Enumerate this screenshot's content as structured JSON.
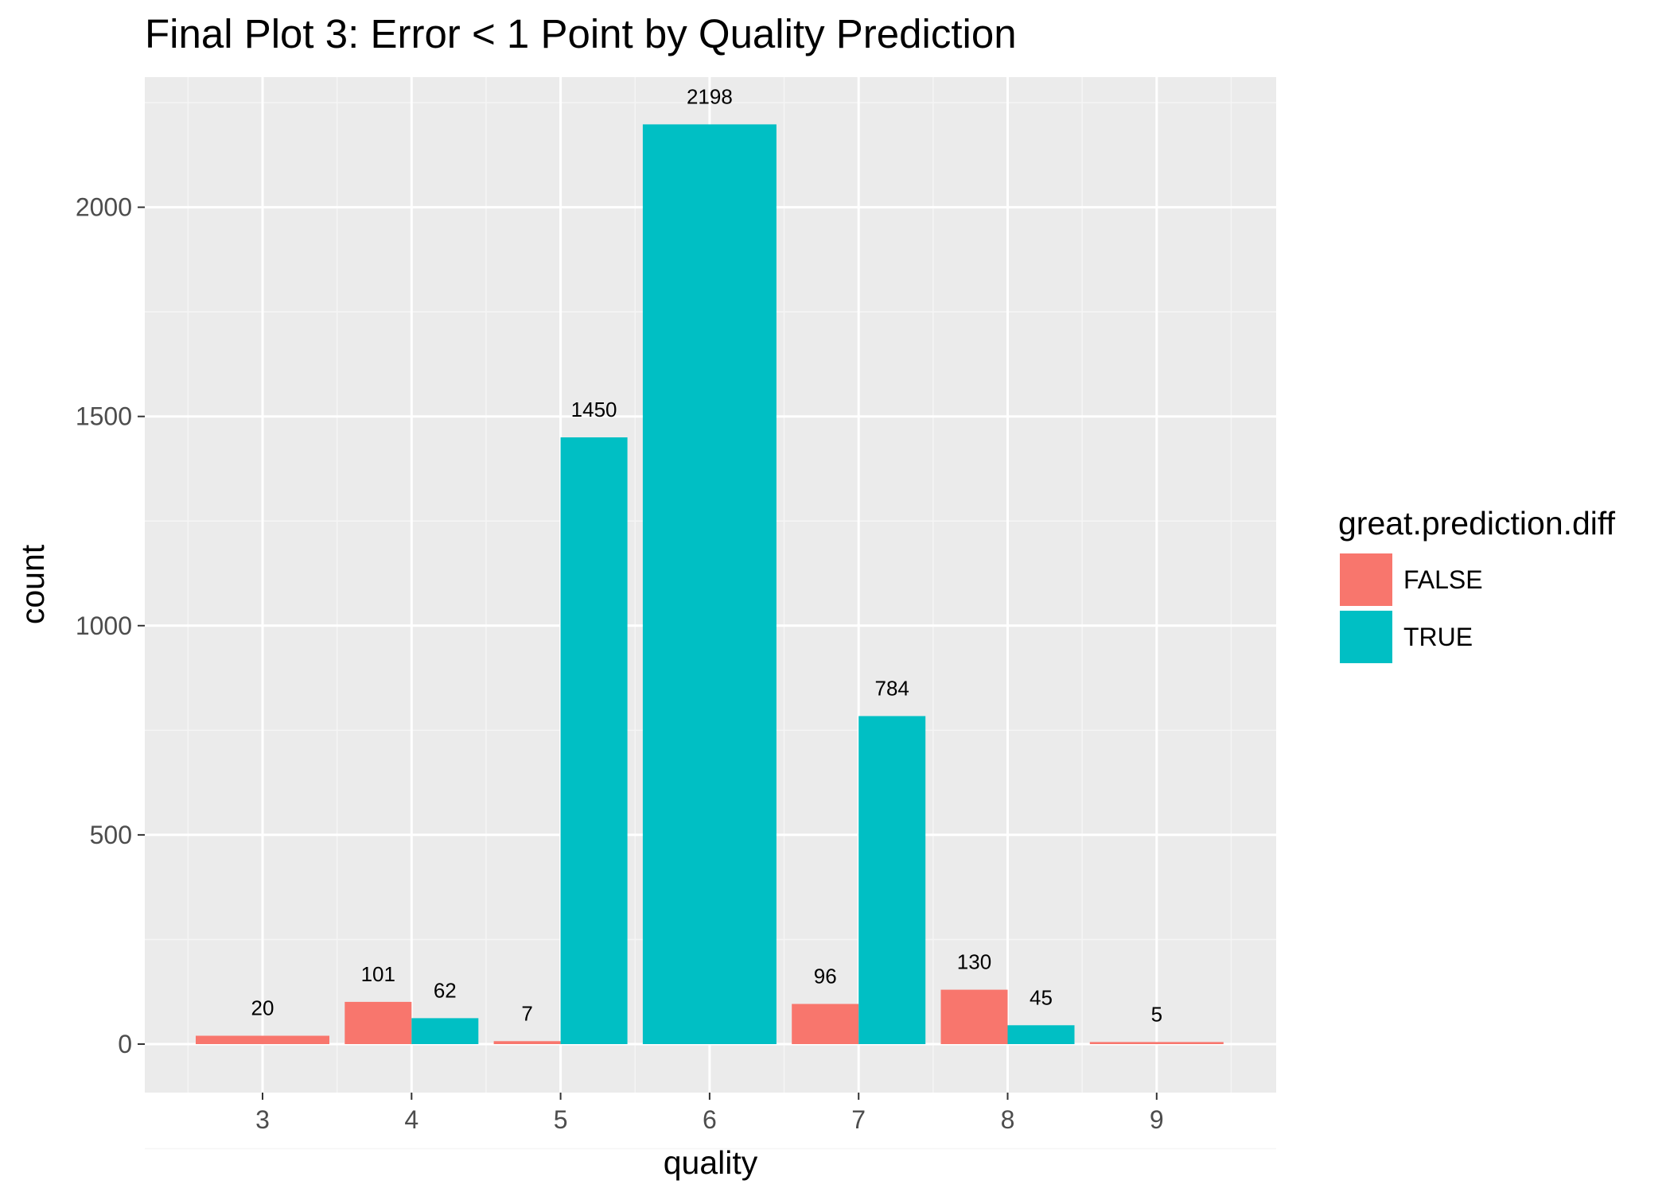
{
  "chart_data": {
    "type": "bar",
    "title": "Final Plot 3: Error < 1 Point by Quality Prediction",
    "xlabel": "quality",
    "ylabel": "count",
    "categories": [
      "3",
      "4",
      "5",
      "6",
      "7",
      "8",
      "9"
    ],
    "ylim": [
      -110,
      2290
    ],
    "yticks": [
      0,
      500,
      1000,
      1500,
      2000
    ],
    "grid": true,
    "legend": {
      "title": "great.prediction.diff",
      "position": "right",
      "entries": [
        {
          "label": "FALSE",
          "color": "#F8766D"
        },
        {
          "label": "TRUE",
          "color": "#00BFC4"
        }
      ]
    },
    "series": [
      {
        "name": "FALSE",
        "color": "#F8766D",
        "values": [
          20,
          101,
          7,
          null,
          96,
          130,
          5
        ]
      },
      {
        "name": "TRUE",
        "color": "#00BFC4",
        "values": [
          null,
          62,
          1450,
          2198,
          784,
          45,
          null
        ]
      }
    ],
    "bars": [
      {
        "category": "3",
        "series": "FALSE",
        "value": 20,
        "label": "20",
        "slot": 0,
        "slots": 1
      },
      {
        "category": "4",
        "series": "FALSE",
        "value": 101,
        "label": "101",
        "slot": 0,
        "slots": 2
      },
      {
        "category": "4",
        "series": "TRUE",
        "value": 62,
        "label": "62",
        "slot": 1,
        "slots": 2
      },
      {
        "category": "5",
        "series": "FALSE",
        "value": 7,
        "label": "7",
        "slot": 0,
        "slots": 2
      },
      {
        "category": "5",
        "series": "TRUE",
        "value": 1450,
        "label": "1450",
        "slot": 1,
        "slots": 2
      },
      {
        "category": "6",
        "series": "TRUE",
        "value": 2198,
        "label": "2198",
        "slot": 0,
        "slots": 1
      },
      {
        "category": "7",
        "series": "FALSE",
        "value": 96,
        "label": "96",
        "slot": 0,
        "slots": 2
      },
      {
        "category": "7",
        "series": "TRUE",
        "value": 784,
        "label": "784",
        "slot": 1,
        "slots": 2
      },
      {
        "category": "8",
        "series": "FALSE",
        "value": 130,
        "label": "130",
        "slot": 0,
        "slots": 2
      },
      {
        "category": "8",
        "series": "TRUE",
        "value": 45,
        "label": "45",
        "slot": 1,
        "slots": 2
      },
      {
        "category": "9",
        "series": "FALSE",
        "value": 5,
        "label": "5",
        "slot": 0,
        "slots": 1
      }
    ]
  }
}
